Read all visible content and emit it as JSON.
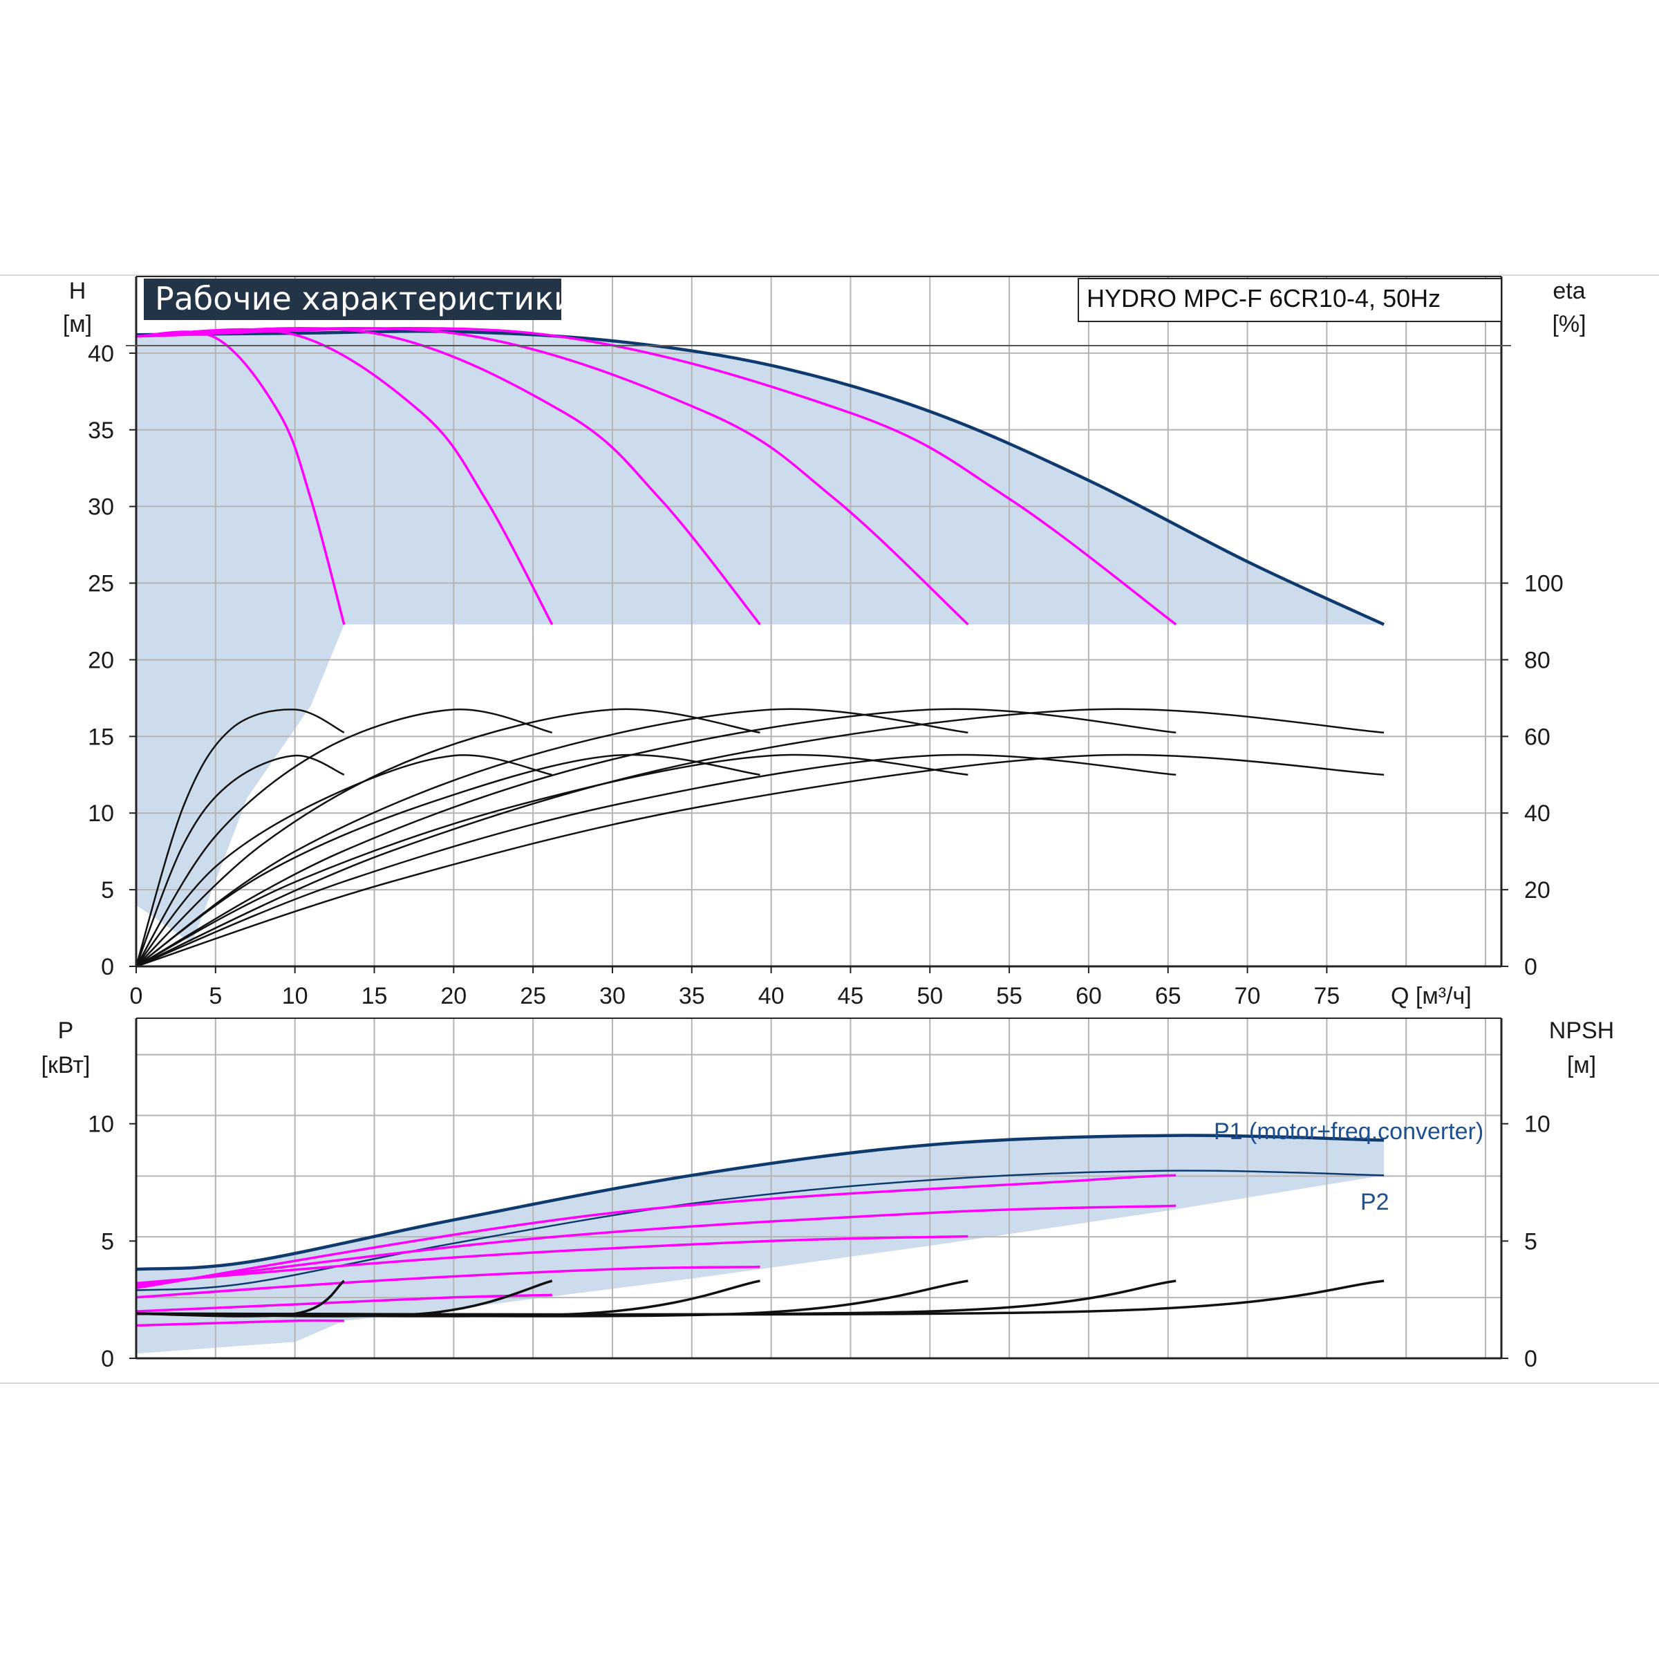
{
  "header": {
    "title": "Рабочие характеристики",
    "model": "HYDRO MPC-F 6CR10-4, 50Hz"
  },
  "colors": {
    "envelope": "#0e3a6e",
    "speed_curves": "#ff00ff",
    "efficiency": "#111111",
    "fill": "#cddcec",
    "grid": "#b4b4b4",
    "title_bg": "#243447"
  },
  "chart_data": [
    {
      "type": "line",
      "id": "head",
      "title": "Рабочие характеристики",
      "xlabel": "Q [м³/ч]",
      "ylabel_left": [
        "H",
        "[м]"
      ],
      "ylabel_right": [
        "eta",
        "[%]"
      ],
      "xlim": [
        0,
        86
      ],
      "ylim": [
        0,
        45
      ],
      "right_ylim": [
        0,
        180
      ],
      "x_ticks": [
        "0",
        "5",
        "10",
        "15",
        "20",
        "25",
        "30",
        "35",
        "40",
        "45",
        "50",
        "55",
        "60",
        "65",
        "70",
        "75"
      ],
      "y_ticks": [
        "0",
        "5",
        "10",
        "15",
        "20",
        "25",
        "30",
        "35",
        "40"
      ],
      "right_ticks": [
        "0",
        "20",
        "40",
        "60",
        "80",
        "100"
      ],
      "grid": true,
      "series": [
        {
          "role": "envelope",
          "x": [
            0,
            10,
            20,
            30,
            40,
            50,
            60,
            70,
            78.6
          ],
          "y": [
            41.2,
            41.3,
            41.4,
            40.8,
            39.2,
            36.2,
            31.7,
            26.4,
            22.3
          ]
        },
        {
          "role": "speed",
          "x": [
            0,
            5,
            9,
            11,
            13.1
          ],
          "y": [
            41.1,
            41.0,
            36.1,
            30.5,
            22.3
          ]
        },
        {
          "role": "speed",
          "x": [
            0,
            10,
            18,
            22,
            26.2
          ],
          "y": [
            41.1,
            41.2,
            36.1,
            30.5,
            22.3
          ]
        },
        {
          "role": "speed",
          "x": [
            0,
            15,
            27,
            33,
            39.3
          ],
          "y": [
            41.1,
            41.3,
            36.1,
            30.5,
            22.3
          ]
        },
        {
          "role": "speed",
          "x": [
            0,
            20,
            36,
            44,
            52.4
          ],
          "y": [
            41.1,
            41.3,
            36.1,
            30.5,
            22.3
          ]
        },
        {
          "role": "speed",
          "x": [
            0,
            25,
            45,
            55,
            65.5
          ],
          "y": [
            41.1,
            41.3,
            36.1,
            30.5,
            22.3
          ]
        },
        {
          "role": "efficiency",
          "x": [
            0,
            3,
            6,
            10,
            13.1
          ],
          "y": [
            0,
            42,
            62,
            67,
            61
          ]
        },
        {
          "role": "efficiency",
          "x": [
            0,
            5,
            12,
            20,
            26.2
          ],
          "y": [
            0,
            34,
            57,
            67,
            61
          ]
        },
        {
          "role": "efficiency",
          "x": [
            0,
            8,
            18,
            30,
            39.3
          ],
          "y": [
            0,
            32,
            55,
            67,
            61
          ]
        },
        {
          "role": "efficiency",
          "x": [
            0,
            10,
            24,
            40,
            52.4
          ],
          "y": [
            0,
            30,
            54,
            67,
            61
          ]
        },
        {
          "role": "efficiency",
          "x": [
            0,
            13,
            30,
            50,
            65.5
          ],
          "y": [
            0,
            30,
            54,
            67,
            61
          ]
        },
        {
          "role": "efficiency",
          "x": [
            0,
            16,
            36,
            60,
            78.6
          ],
          "y": [
            0,
            30,
            54,
            67,
            61
          ]
        },
        {
          "role": "efficiency",
          "x": [
            0,
            3,
            6,
            10,
            13.1
          ],
          "y": [
            0,
            32,
            48,
            55,
            50
          ]
        },
        {
          "role": "efficiency",
          "x": [
            0,
            5,
            12,
            20,
            26.2
          ],
          "y": [
            0,
            26,
            44,
            55,
            50
          ]
        },
        {
          "role": "efficiency",
          "x": [
            0,
            8,
            18,
            30,
            39.3
          ],
          "y": [
            0,
            24,
            42,
            55,
            50
          ]
        },
        {
          "role": "efficiency",
          "x": [
            0,
            10,
            24,
            40,
            52.4
          ],
          "y": [
            0,
            22,
            42,
            55,
            50
          ]
        },
        {
          "role": "efficiency",
          "x": [
            0,
            13,
            30,
            50,
            65.5
          ],
          "y": [
            0,
            22,
            42,
            55,
            50
          ]
        },
        {
          "role": "efficiency",
          "x": [
            0,
            16,
            36,
            60,
            78.6
          ],
          "y": [
            0,
            22,
            42,
            55,
            50
          ]
        }
      ]
    },
    {
      "type": "line",
      "id": "power",
      "xlabel": "",
      "ylabel_left": [
        "P",
        "[кВт]"
      ],
      "ylabel_right": [
        "NPSH",
        "[м]"
      ],
      "xlim": [
        0,
        86
      ],
      "ylim": [
        0,
        14.5
      ],
      "right_ylim": [
        0,
        14.5
      ],
      "y_ticks": [
        "0",
        "5",
        "10"
      ],
      "right_ticks": [
        "0",
        "5",
        "10"
      ],
      "grid": true,
      "series": [
        {
          "role": "P1",
          "name": "P1 (motor+freq.converter)",
          "x": [
            0,
            7,
            20,
            35,
            50,
            65,
            78.6
          ],
          "y": [
            3.8,
            4.1,
            5.9,
            7.8,
            9.1,
            9.5,
            9.3
          ]
        },
        {
          "role": "P2",
          "name": "P2",
          "x": [
            0,
            7,
            20,
            35,
            50,
            65,
            78.6
          ],
          "y": [
            2.9,
            3.2,
            4.9,
            6.6,
            7.6,
            8.0,
            7.8
          ]
        },
        {
          "role": "speed",
          "x": [
            0,
            5,
            10,
            13.1
          ],
          "y": [
            1.4,
            1.5,
            1.6,
            1.6
          ]
        },
        {
          "role": "speed",
          "x": [
            0,
            10,
            20,
            26.2
          ],
          "y": [
            2.0,
            2.3,
            2.6,
            2.7
          ]
        },
        {
          "role": "speed",
          "x": [
            0,
            15,
            30,
            39.3
          ],
          "y": [
            2.6,
            3.3,
            3.8,
            3.9
          ]
        },
        {
          "role": "speed",
          "x": [
            0,
            20,
            40,
            52.4
          ],
          "y": [
            3.2,
            4.3,
            5.0,
            5.2
          ]
        },
        {
          "role": "speed",
          "x": [
            0,
            25,
            50,
            65.5
          ],
          "y": [
            3.1,
            5.1,
            6.2,
            6.5
          ]
        },
        {
          "role": "speed",
          "x": [
            0,
            30,
            60,
            65.5
          ],
          "y": [
            3.0,
            6.2,
            7.6,
            7.8
          ]
        },
        {
          "role": "npsh",
          "x": [
            0,
            10,
            13.1
          ],
          "y": [
            1.9,
            1.9,
            3.3
          ]
        },
        {
          "role": "npsh",
          "x": [
            0,
            18,
            26.2
          ],
          "y": [
            1.9,
            1.9,
            3.3
          ]
        },
        {
          "role": "npsh",
          "x": [
            0,
            28,
            39.3
          ],
          "y": [
            1.9,
            1.9,
            3.3
          ]
        },
        {
          "role": "npsh",
          "x": [
            0,
            38,
            52.4
          ],
          "y": [
            1.9,
            1.9,
            3.3
          ]
        },
        {
          "role": "npsh",
          "x": [
            0,
            50,
            65.5
          ],
          "y": [
            1.9,
            2.0,
            3.3
          ]
        },
        {
          "role": "npsh",
          "x": [
            0,
            60,
            78.6
          ],
          "y": [
            1.9,
            2.0,
            3.3
          ]
        }
      ]
    }
  ]
}
